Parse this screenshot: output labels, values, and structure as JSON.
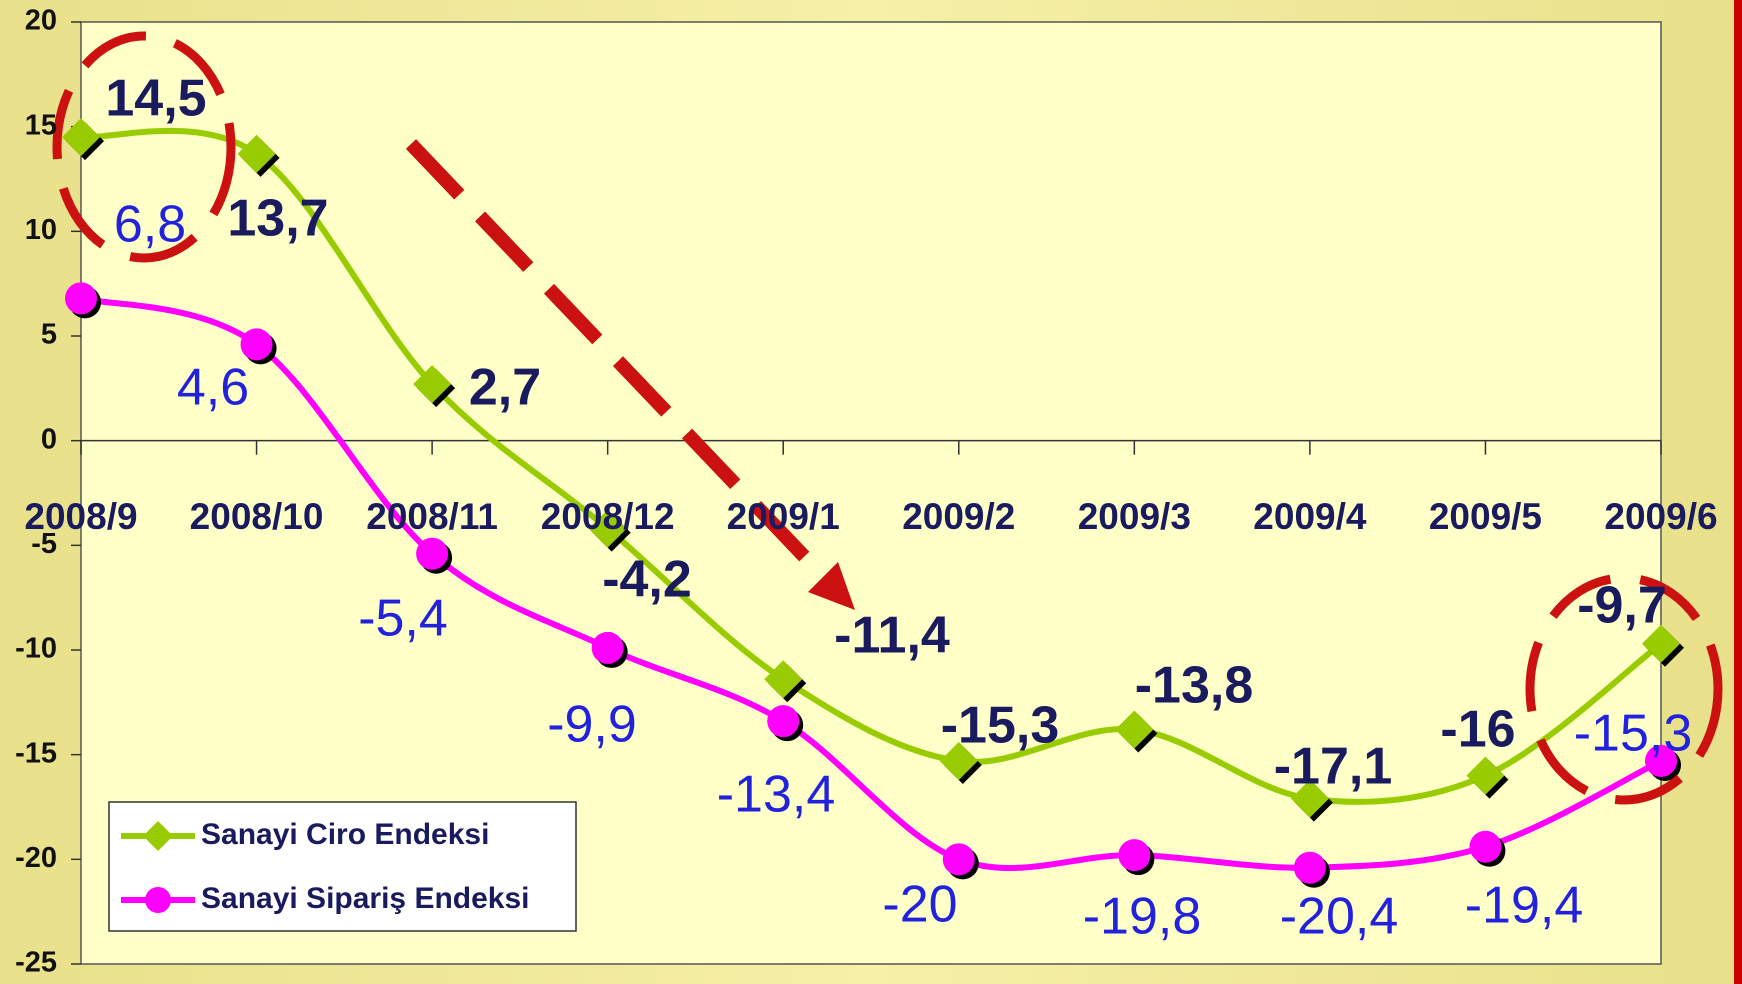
{
  "chart_data": {
    "type": "line",
    "categories": [
      "2008/9",
      "2008/10",
      "2008/11",
      "2008/12",
      "2009/1",
      "2009/2",
      "2009/3",
      "2009/4",
      "2009/5",
      "2009/6"
    ],
    "series": [
      {
        "name": "Sanayi Ciro Endeksi",
        "color": "#99cc00",
        "values": [
          14.5,
          13.7,
          2.7,
          -4.2,
          -11.4,
          -15.3,
          -13.8,
          -17.1,
          -16,
          -9.7
        ],
        "value_labels": [
          "14,5",
          "13,7",
          "2,7",
          "-4,2",
          "-11,4",
          "-15,3",
          "-13,8",
          "-17,1",
          "-16",
          "-9,7"
        ]
      },
      {
        "name": "Sanayi Sipariş Endeksi",
        "color": "#ff00ff",
        "values": [
          6.8,
          4.6,
          -5.4,
          -9.9,
          -13.4,
          -20,
          -19.8,
          -20.4,
          -19.4,
          -15.3
        ],
        "value_labels": [
          "6,8",
          "4,6",
          "-5,4",
          "-9,9",
          "-13,4",
          "-20",
          "-19,8",
          "-20,4",
          "-19,4",
          "-15,3"
        ]
      }
    ],
    "ylim": [
      -25,
      20
    ],
    "yticks": [
      -25,
      -20,
      -15,
      -10,
      -5,
      0,
      5,
      10,
      15,
      20
    ],
    "legend": "bottom-left"
  }
}
